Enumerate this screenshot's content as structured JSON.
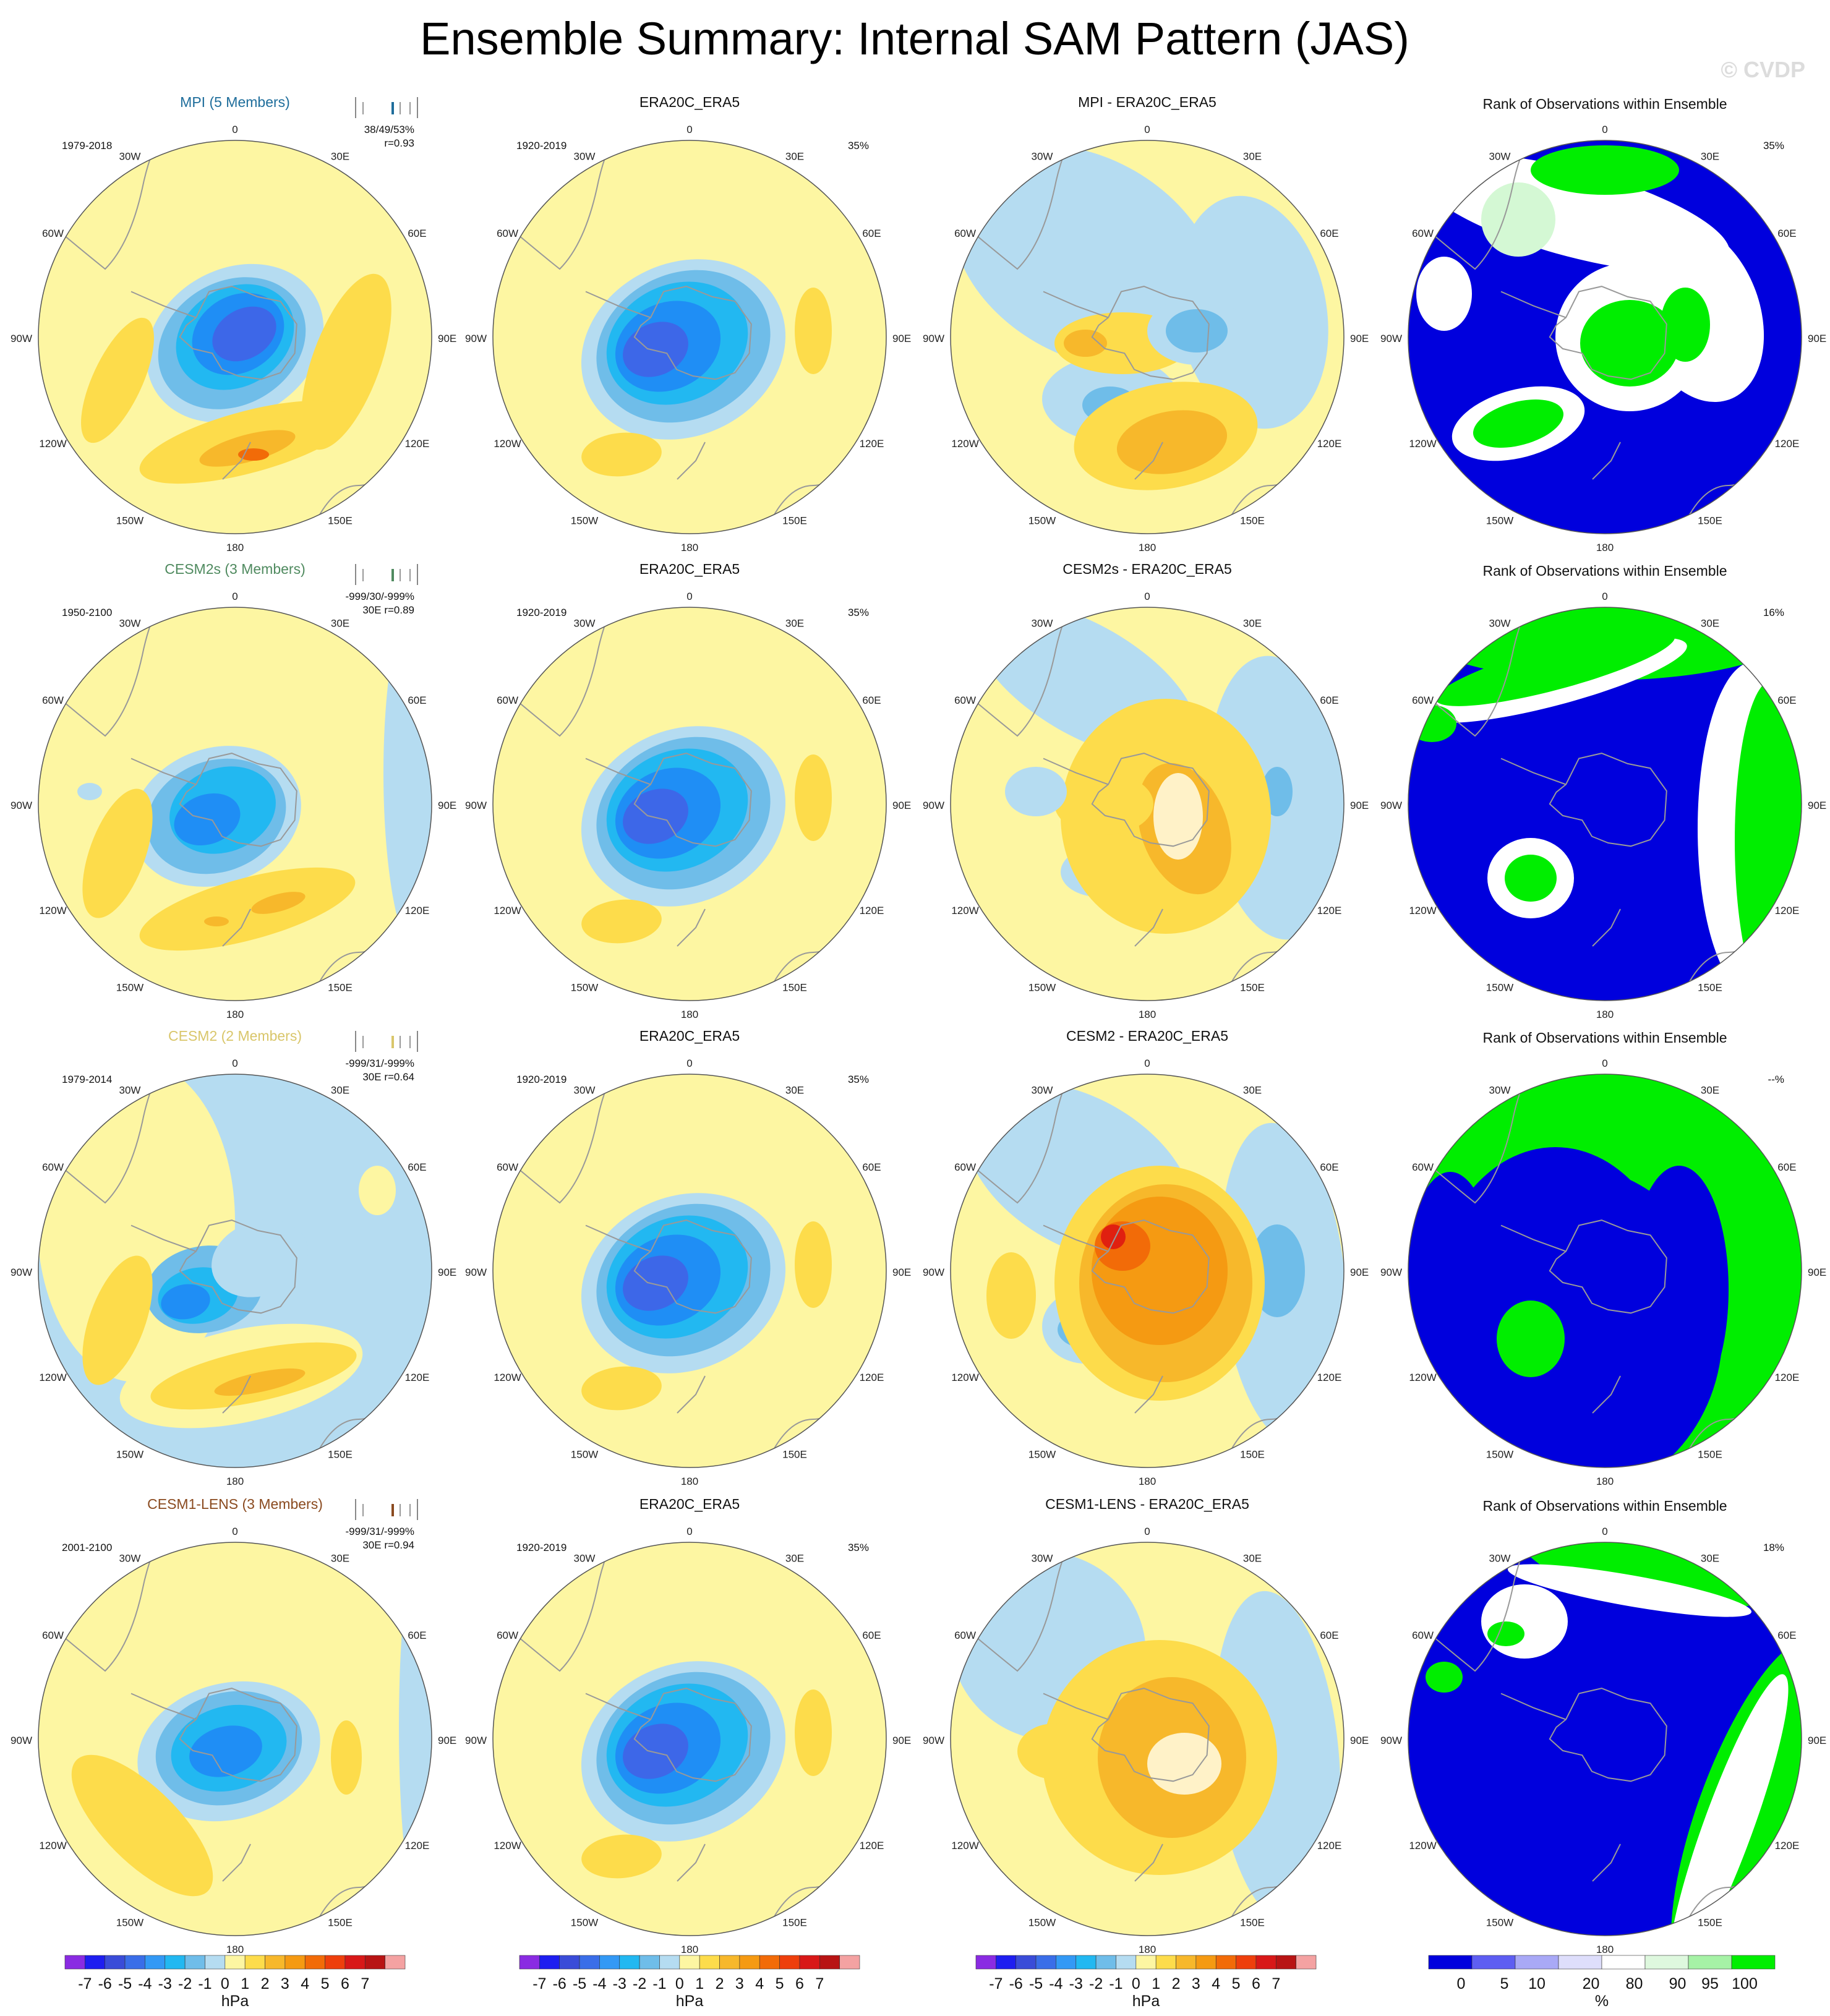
{
  "title": "Ensemble Summary: Internal SAM Pattern (JAS)",
  "watermark": "© CVDP",
  "colors": {
    "ocean_yellow": "#fdf6a2",
    "light_blue": "#b5dcf1",
    "blues": [
      "#b5dcf1",
      "#6fbde9",
      "#22b8f1",
      "#1f8ef5",
      "#3d67e8",
      "#3148cc"
    ],
    "oranges": [
      "#fddc4b",
      "#f7b82b",
      "#f59a12",
      "#f26b08",
      "#df3a10"
    ],
    "rank_blue": "#0000dd",
    "rank_green": "#00ee00",
    "rank_pale_green": "#d4f8d4",
    "coast": "#999999"
  },
  "lon_labels": [
    "0",
    "30E",
    "60E",
    "90E",
    "120E",
    "150E",
    "180",
    "150W",
    "120W",
    "90W",
    "60W",
    "30W"
  ],
  "chart_data": {
    "type": "polar-map-panels",
    "rows": [
      {
        "model_title": "MPI (5 Members)",
        "model_color": "#1e6d9b",
        "model_period": "1979-2018",
        "model_stats": [
          "38/49/53%",
          "r=0.93"
        ],
        "obs_title": "ERA20C_ERA5",
        "obs_period": "1920-2019",
        "obs_pct": "35%",
        "diff_title": "MPI - ERA20C_ERA5",
        "rank_title": "Rank of Observations within Ensemble",
        "rank_pct": "35%"
      },
      {
        "model_title": "CESM2s (3 Members)",
        "model_color": "#4f8a5f",
        "model_period": "1950-2100",
        "model_stats": [
          "-999/30/-999%",
          "30E r=0.89"
        ],
        "obs_title": "ERA20C_ERA5",
        "obs_period": "1920-2019",
        "obs_pct": "35%",
        "diff_title": "CESM2s - ERA20C_ERA5",
        "rank_title": "Rank of Observations within Ensemble",
        "rank_pct": "16%"
      },
      {
        "model_title": "CESM2 (2 Members)",
        "model_color": "#d9c66a",
        "model_period": "1979-2014",
        "model_stats": [
          "-999/31/-999%",
          "30E r=0.64"
        ],
        "obs_title": "ERA20C_ERA5",
        "obs_period": "1920-2019",
        "obs_pct": "35%",
        "diff_title": "CESM2 - ERA20C_ERA5",
        "rank_title": "Rank of Observations within Ensemble",
        "rank_pct": "--%"
      },
      {
        "model_title": "CESM1-LENS (3 Members)",
        "model_color": "#8a4a1f",
        "model_period": "2001-2100",
        "model_stats": [
          "-999/31/-999%",
          "30E r=0.94"
        ],
        "obs_title": "ERA20C_ERA5",
        "obs_period": "1920-2019",
        "obs_pct": "35%",
        "diff_title": "CESM1-LENS - ERA20C_ERA5",
        "rank_title": "Rank of Observations within Ensemble",
        "rank_pct": "18%"
      }
    ],
    "colorbar_hpa": {
      "unit": "hPa",
      "tick_labels": [
        "-7",
        "-6",
        "-5",
        "-4",
        "-3",
        "-2",
        "-1",
        "0",
        "1",
        "2",
        "3",
        "4",
        "5",
        "6",
        "7"
      ],
      "colors": [
        "#8a2be2",
        "#1e1ef0",
        "#3a4cd8",
        "#3a6ee8",
        "#3399f5",
        "#22b8f1",
        "#6fbde9",
        "#b5dcf1",
        "#fdf6a2",
        "#fddc4b",
        "#f7b82b",
        "#f59a12",
        "#f26b08",
        "#ee3f0c",
        "#d81818",
        "#b81414",
        "#f4a2a2"
      ]
    },
    "colorbar_rank": {
      "unit": "%",
      "tick_labels": [
        "0",
        "5",
        "10",
        "20",
        "80",
        "90",
        "95",
        "100"
      ],
      "tick_values": [
        0,
        5,
        10,
        20,
        80,
        90,
        95,
        100
      ],
      "colors": [
        "#0000dd",
        "#5e5ef2",
        "#a9a9f6",
        "#dedefb",
        "#ffffff",
        "#def8de",
        "#a6f2a6",
        "#00ee00"
      ]
    }
  }
}
